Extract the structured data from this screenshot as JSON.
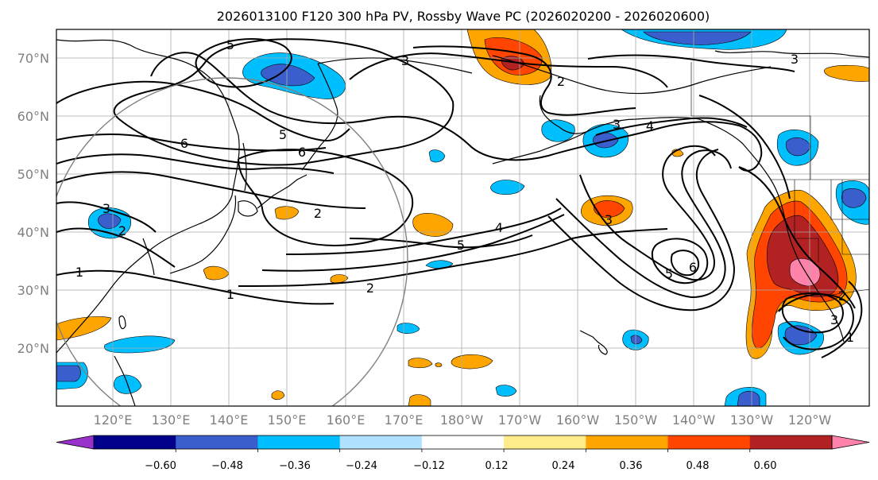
{
  "title": "2026013100 F120 300 hPa PV, Rossby Wave PC (2026020200 - 2026020600)",
  "axes": {
    "lat_labels": [
      "70°N",
      "60°N",
      "50°N",
      "40°N",
      "30°N",
      "20°N"
    ],
    "lon_labels": [
      "120°E",
      "130°E",
      "140°E",
      "150°E",
      "160°E",
      "170°E",
      "180°W",
      "170°W",
      "160°W",
      "150°W",
      "140°W",
      "130°W",
      "120°W"
    ]
  },
  "colorbar": {
    "ticks": [
      "−0.60",
      "−0.48",
      "−0.36",
      "−0.24",
      "−0.12",
      "0.12",
      "0.24",
      "0.36",
      "0.48",
      "0.60"
    ],
    "colors": [
      "#9932cc",
      "#00008b",
      "#3a5fcd",
      "#00bfff",
      "#b0e2ff",
      "#ffffff",
      "#ffec8b",
      "#ffa500",
      "#ff4500",
      "#b22222",
      "#ff82ab"
    ]
  },
  "colors": {
    "coast": "#000000",
    "grid": "#aaaaaa",
    "contour": "#000000",
    "circle": "#808080",
    "axis_label": "#808080"
  },
  "contour_labels": [
    {
      "name": "contour-label-5-top",
      "text": "5"
    },
    {
      "name": "contour-label-5-sea-okhotsk",
      "text": "5"
    },
    {
      "name": "contour-label-6-west",
      "text": "6"
    },
    {
      "name": "contour-label-6-kuril",
      "text": "6"
    },
    {
      "name": "contour-label-3-west",
      "text": "3"
    },
    {
      "name": "contour-label-2-west",
      "text": "2"
    },
    {
      "name": "contour-label-1-west",
      "text": "1"
    },
    {
      "name": "contour-label-2-japan-east",
      "text": "2"
    },
    {
      "name": "contour-label-1-south",
      "text": "1"
    },
    {
      "name": "contour-label-2-south",
      "text": "2"
    },
    {
      "name": "contour-label-5-central",
      "text": "5"
    },
    {
      "name": "contour-label-4-central",
      "text": "4"
    },
    {
      "name": "contour-label-3-dateline",
      "text": "3"
    },
    {
      "name": "contour-label-2-alaska",
      "text": "2"
    },
    {
      "name": "contour-label-3-alaska",
      "text": "3"
    },
    {
      "name": "contour-label-4-gulf-alaska",
      "text": "4"
    },
    {
      "name": "contour-label-5-trough",
      "text": "5"
    },
    {
      "name": "contour-label-6-trough",
      "text": "6"
    },
    {
      "name": "contour-label-3-east",
      "text": "3"
    },
    {
      "name": "contour-label-3-baja",
      "text": "3"
    },
    {
      "name": "contour-label-2-baja",
      "text": "2"
    },
    {
      "name": "contour-label-1-baja",
      "text": "1"
    },
    {
      "name": "contour-label-3-canada",
      "text": "3"
    }
  ]
}
